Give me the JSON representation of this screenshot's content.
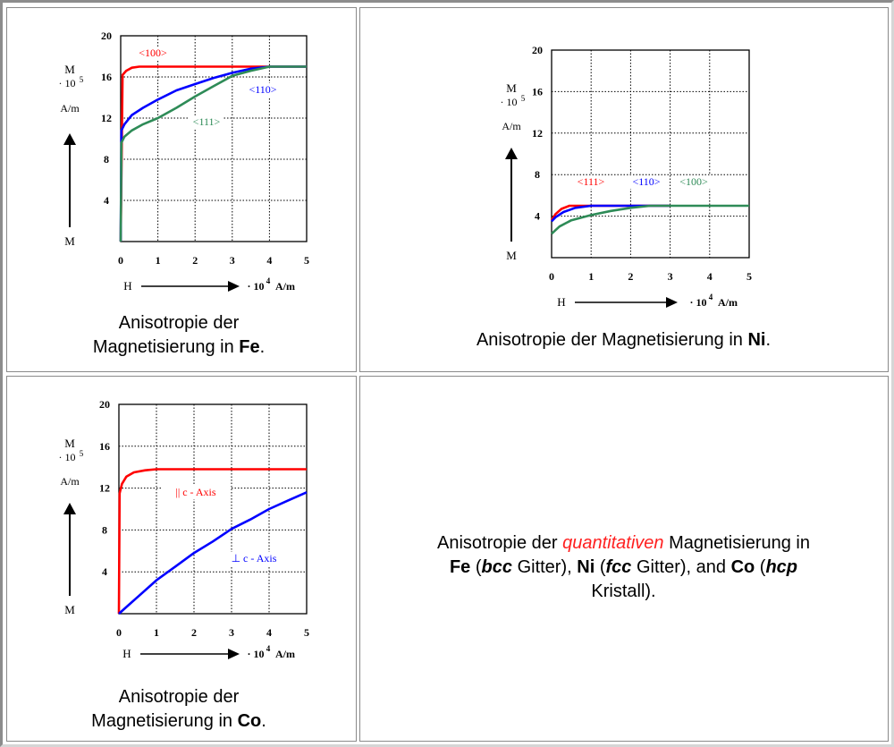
{
  "panels": [
    {
      "caption_prefix": "Anisotropie der",
      "caption_line2": "Magnetisierung in",
      "caption_element": "Fe",
      "caption_suffix": "."
    },
    {
      "caption_prefix": "Anisotropie der Magnetisierung in",
      "caption_element": "Ni",
      "caption_suffix": "."
    },
    {
      "caption_prefix": "Anisotropie der",
      "caption_line2": "Magnetisierung in",
      "caption_element": "Co",
      "caption_suffix": "."
    }
  ],
  "summary": {
    "t1": "Anisotropie der",
    "t2": "quantitativen",
    "t3": "Magnetisierung in",
    "fe": "Fe",
    "bcc_open": "(",
    "bcc": "bcc",
    "bcc_close": "Gitter),",
    "ni": "Ni",
    "fcc_open": "(",
    "fcc": "fcc",
    "fcc_close": "Gitter), and",
    "co": "Co",
    "hcp_open": "(",
    "hcp": "hcp",
    "hcp_close": "Kristall)."
  },
  "colors": {
    "red": "#ff0000",
    "blue": "#0000ff",
    "green": "#2e8b57"
  },
  "chart_data": [
    {
      "type": "line",
      "title": "",
      "ylabel": [
        "M",
        "· 10",
        "5",
        "A/m",
        "M"
      ],
      "xlabel": [
        "H",
        "· 10",
        "4",
        "A/m"
      ],
      "xlim": [
        0,
        5
      ],
      "ylim": [
        0,
        20
      ],
      "x_ticks": [
        "0",
        "1",
        "2",
        "3",
        "4",
        "5"
      ],
      "y_ticks": [
        "4",
        "8",
        "12",
        "16",
        "20"
      ],
      "grid": true,
      "series": [
        {
          "name": "<100>",
          "color": "red",
          "x": [
            0,
            0.05,
            0.15,
            0.3,
            0.5,
            0.7,
            5
          ],
          "y": [
            0,
            16.2,
            16.6,
            16.9,
            17.0,
            17.0,
            17.0
          ]
        },
        {
          "name": "<110>",
          "color": "blue",
          "x": [
            0,
            0.02,
            0.1,
            0.3,
            0.6,
            1,
            1.5,
            2,
            2.5,
            3,
            3.5,
            4,
            4.5,
            5
          ],
          "y": [
            0,
            10.8,
            11.4,
            12.3,
            13.0,
            13.8,
            14.7,
            15.3,
            15.9,
            16.4,
            16.8,
            17.0,
            17.0,
            17.0
          ]
        },
        {
          "name": "<111>",
          "color": "green",
          "x": [
            0,
            0.02,
            0.1,
            0.3,
            0.6,
            1,
            1.5,
            2,
            2.5,
            3,
            3.5,
            4,
            4.5,
            5
          ],
          "y": [
            0,
            9.6,
            10.2,
            10.8,
            11.4,
            12.0,
            13.0,
            14.1,
            15.1,
            16.1,
            16.6,
            17.0,
            17.0,
            17.0
          ]
        }
      ],
      "annotations": [
        "<100>",
        "<110>",
        "<111>"
      ]
    },
    {
      "type": "line",
      "title": "",
      "ylabel": [
        "M",
        "· 10",
        "5",
        "A/m",
        "M"
      ],
      "xlabel": [
        "H",
        "· 10",
        "4",
        "A/m"
      ],
      "xlim": [
        0,
        5
      ],
      "ylim": [
        0,
        20
      ],
      "x_ticks": [
        "0",
        "1",
        "2",
        "3",
        "4",
        "5"
      ],
      "y_ticks": [
        "4",
        "8",
        "12",
        "16",
        "20"
      ],
      "grid": true,
      "series": [
        {
          "name": "<111>",
          "color": "red",
          "x": [
            0,
            0.1,
            0.25,
            0.45,
            0.7,
            1,
            3
          ],
          "y": [
            3.6,
            4.2,
            4.7,
            5.0,
            5.0,
            5.0,
            5.0
          ]
        },
        {
          "name": "<110>",
          "color": "blue",
          "x": [
            0,
            0.1,
            0.3,
            0.6,
            1,
            1.5,
            2,
            3
          ],
          "y": [
            3.5,
            3.9,
            4.4,
            4.8,
            5.0,
            5.0,
            5.0,
            5.0
          ]
        },
        {
          "name": "<100>",
          "color": "green",
          "x": [
            0,
            0.2,
            0.5,
            1,
            1.5,
            2,
            2.5,
            3,
            5
          ],
          "y": [
            2.3,
            3.0,
            3.6,
            4.1,
            4.5,
            4.8,
            5.0,
            5.0,
            5.0
          ]
        }
      ],
      "annotations": [
        "<111>",
        "<110>",
        "<100>"
      ]
    },
    {
      "type": "line",
      "title": "",
      "ylabel": [
        "M",
        "· 10",
        "5",
        "A/m",
        "M"
      ],
      "xlabel": [
        "H",
        "· 10",
        "4",
        "A/m"
      ],
      "xlim": [
        0,
        5
      ],
      "ylim": [
        0,
        20
      ],
      "x_ticks": [
        "0",
        "1",
        "2",
        "3",
        "4",
        "5"
      ],
      "y_ticks": [
        "4",
        "8",
        "12",
        "16",
        "20"
      ],
      "grid": true,
      "series": [
        {
          "name": "|| c - Axis",
          "color": "red",
          "x": [
            0,
            0.02,
            0.08,
            0.2,
            0.4,
            0.7,
            1,
            5
          ],
          "y": [
            0,
            11.5,
            12.4,
            13.1,
            13.5,
            13.7,
            13.8,
            13.8
          ]
        },
        {
          "name": "⊥ c - Axis",
          "color": "blue",
          "x": [
            0,
            0.25,
            0.5,
            1,
            1.5,
            2,
            2.5,
            3,
            3.5,
            4,
            4.5,
            5
          ],
          "y": [
            0,
            0.8,
            1.6,
            3.2,
            4.5,
            5.8,
            6.9,
            8.1,
            9.0,
            10.0,
            10.8,
            11.6
          ]
        }
      ],
      "annotations": [
        "|| c - Axis",
        "⊥ c - Axis"
      ]
    }
  ]
}
